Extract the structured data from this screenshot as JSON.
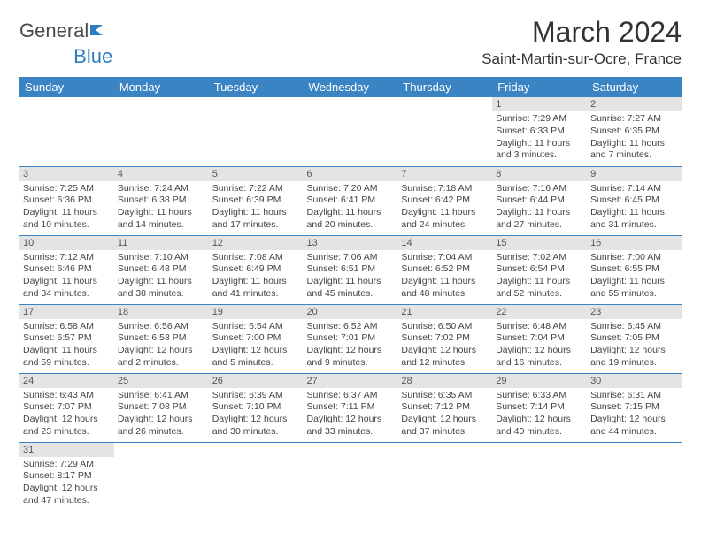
{
  "logo": {
    "part1": "General",
    "part2": "Blue"
  },
  "title": "March 2024",
  "location": "Saint-Martin-sur-Ocre, France",
  "day_headers": [
    "Sunday",
    "Monday",
    "Tuesday",
    "Wednesday",
    "Thursday",
    "Friday",
    "Saturday"
  ],
  "colors": {
    "header_bg": "#3b84c4",
    "header_text": "#ffffff",
    "daynum_bg": "#e4e4e4",
    "cell_border": "#3b84c4",
    "logo_accent": "#2e7cc0"
  },
  "weeks": [
    [
      null,
      null,
      null,
      null,
      null,
      {
        "n": "1",
        "sr": "Sunrise: 7:29 AM",
        "ss": "Sunset: 6:33 PM",
        "dl1": "Daylight: 11 hours",
        "dl2": "and 3 minutes."
      },
      {
        "n": "2",
        "sr": "Sunrise: 7:27 AM",
        "ss": "Sunset: 6:35 PM",
        "dl1": "Daylight: 11 hours",
        "dl2": "and 7 minutes."
      }
    ],
    [
      {
        "n": "3",
        "sr": "Sunrise: 7:25 AM",
        "ss": "Sunset: 6:36 PM",
        "dl1": "Daylight: 11 hours",
        "dl2": "and 10 minutes."
      },
      {
        "n": "4",
        "sr": "Sunrise: 7:24 AM",
        "ss": "Sunset: 6:38 PM",
        "dl1": "Daylight: 11 hours",
        "dl2": "and 14 minutes."
      },
      {
        "n": "5",
        "sr": "Sunrise: 7:22 AM",
        "ss": "Sunset: 6:39 PM",
        "dl1": "Daylight: 11 hours",
        "dl2": "and 17 minutes."
      },
      {
        "n": "6",
        "sr": "Sunrise: 7:20 AM",
        "ss": "Sunset: 6:41 PM",
        "dl1": "Daylight: 11 hours",
        "dl2": "and 20 minutes."
      },
      {
        "n": "7",
        "sr": "Sunrise: 7:18 AM",
        "ss": "Sunset: 6:42 PM",
        "dl1": "Daylight: 11 hours",
        "dl2": "and 24 minutes."
      },
      {
        "n": "8",
        "sr": "Sunrise: 7:16 AM",
        "ss": "Sunset: 6:44 PM",
        "dl1": "Daylight: 11 hours",
        "dl2": "and 27 minutes."
      },
      {
        "n": "9",
        "sr": "Sunrise: 7:14 AM",
        "ss": "Sunset: 6:45 PM",
        "dl1": "Daylight: 11 hours",
        "dl2": "and 31 minutes."
      }
    ],
    [
      {
        "n": "10",
        "sr": "Sunrise: 7:12 AM",
        "ss": "Sunset: 6:46 PM",
        "dl1": "Daylight: 11 hours",
        "dl2": "and 34 minutes."
      },
      {
        "n": "11",
        "sr": "Sunrise: 7:10 AM",
        "ss": "Sunset: 6:48 PM",
        "dl1": "Daylight: 11 hours",
        "dl2": "and 38 minutes."
      },
      {
        "n": "12",
        "sr": "Sunrise: 7:08 AM",
        "ss": "Sunset: 6:49 PM",
        "dl1": "Daylight: 11 hours",
        "dl2": "and 41 minutes."
      },
      {
        "n": "13",
        "sr": "Sunrise: 7:06 AM",
        "ss": "Sunset: 6:51 PM",
        "dl1": "Daylight: 11 hours",
        "dl2": "and 45 minutes."
      },
      {
        "n": "14",
        "sr": "Sunrise: 7:04 AM",
        "ss": "Sunset: 6:52 PM",
        "dl1": "Daylight: 11 hours",
        "dl2": "and 48 minutes."
      },
      {
        "n": "15",
        "sr": "Sunrise: 7:02 AM",
        "ss": "Sunset: 6:54 PM",
        "dl1": "Daylight: 11 hours",
        "dl2": "and 52 minutes."
      },
      {
        "n": "16",
        "sr": "Sunrise: 7:00 AM",
        "ss": "Sunset: 6:55 PM",
        "dl1": "Daylight: 11 hours",
        "dl2": "and 55 minutes."
      }
    ],
    [
      {
        "n": "17",
        "sr": "Sunrise: 6:58 AM",
        "ss": "Sunset: 6:57 PM",
        "dl1": "Daylight: 11 hours",
        "dl2": "and 59 minutes."
      },
      {
        "n": "18",
        "sr": "Sunrise: 6:56 AM",
        "ss": "Sunset: 6:58 PM",
        "dl1": "Daylight: 12 hours",
        "dl2": "and 2 minutes."
      },
      {
        "n": "19",
        "sr": "Sunrise: 6:54 AM",
        "ss": "Sunset: 7:00 PM",
        "dl1": "Daylight: 12 hours",
        "dl2": "and 5 minutes."
      },
      {
        "n": "20",
        "sr": "Sunrise: 6:52 AM",
        "ss": "Sunset: 7:01 PM",
        "dl1": "Daylight: 12 hours",
        "dl2": "and 9 minutes."
      },
      {
        "n": "21",
        "sr": "Sunrise: 6:50 AM",
        "ss": "Sunset: 7:02 PM",
        "dl1": "Daylight: 12 hours",
        "dl2": "and 12 minutes."
      },
      {
        "n": "22",
        "sr": "Sunrise: 6:48 AM",
        "ss": "Sunset: 7:04 PM",
        "dl1": "Daylight: 12 hours",
        "dl2": "and 16 minutes."
      },
      {
        "n": "23",
        "sr": "Sunrise: 6:45 AM",
        "ss": "Sunset: 7:05 PM",
        "dl1": "Daylight: 12 hours",
        "dl2": "and 19 minutes."
      }
    ],
    [
      {
        "n": "24",
        "sr": "Sunrise: 6:43 AM",
        "ss": "Sunset: 7:07 PM",
        "dl1": "Daylight: 12 hours",
        "dl2": "and 23 minutes."
      },
      {
        "n": "25",
        "sr": "Sunrise: 6:41 AM",
        "ss": "Sunset: 7:08 PM",
        "dl1": "Daylight: 12 hours",
        "dl2": "and 26 minutes."
      },
      {
        "n": "26",
        "sr": "Sunrise: 6:39 AM",
        "ss": "Sunset: 7:10 PM",
        "dl1": "Daylight: 12 hours",
        "dl2": "and 30 minutes."
      },
      {
        "n": "27",
        "sr": "Sunrise: 6:37 AM",
        "ss": "Sunset: 7:11 PM",
        "dl1": "Daylight: 12 hours",
        "dl2": "and 33 minutes."
      },
      {
        "n": "28",
        "sr": "Sunrise: 6:35 AM",
        "ss": "Sunset: 7:12 PM",
        "dl1": "Daylight: 12 hours",
        "dl2": "and 37 minutes."
      },
      {
        "n": "29",
        "sr": "Sunrise: 6:33 AM",
        "ss": "Sunset: 7:14 PM",
        "dl1": "Daylight: 12 hours",
        "dl2": "and 40 minutes."
      },
      {
        "n": "30",
        "sr": "Sunrise: 6:31 AM",
        "ss": "Sunset: 7:15 PM",
        "dl1": "Daylight: 12 hours",
        "dl2": "and 44 minutes."
      }
    ],
    [
      {
        "n": "31",
        "sr": "Sunrise: 7:29 AM",
        "ss": "Sunset: 8:17 PM",
        "dl1": "Daylight: 12 hours",
        "dl2": "and 47 minutes."
      },
      null,
      null,
      null,
      null,
      null,
      null
    ]
  ]
}
